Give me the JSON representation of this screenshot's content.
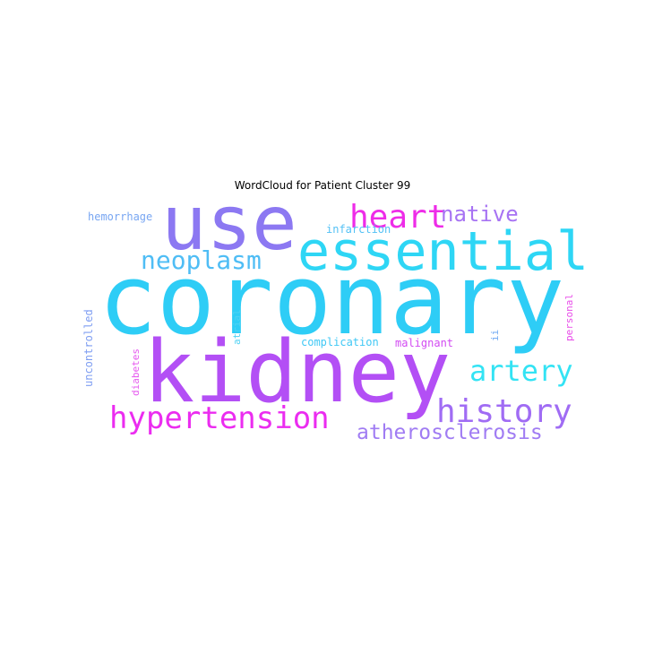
{
  "chart_data": {
    "type": "wordcloud",
    "title": "WordCloud for Patient Cluster 99",
    "words": [
      {
        "text": "coronary",
        "weight": 1.0,
        "color": "#2ecdf6",
        "rotate": false
      },
      {
        "text": "kidney",
        "weight": 0.88,
        "color": "#b34ff5",
        "rotate": false
      },
      {
        "text": "use",
        "weight": 0.78,
        "color": "#8c78f2",
        "rotate": false
      },
      {
        "text": "essential",
        "weight": 0.55,
        "color": "#2ed6f5",
        "rotate": false
      },
      {
        "text": "hypertension",
        "weight": 0.32,
        "color": "#eb2cf0",
        "rotate": false
      },
      {
        "text": "history",
        "weight": 0.34,
        "color": "#a06cf4",
        "rotate": false
      },
      {
        "text": "heart",
        "weight": 0.33,
        "color": "#ee2ce8",
        "rotate": false
      },
      {
        "text": "artery",
        "weight": 0.3,
        "color": "#33e3f4",
        "rotate": false
      },
      {
        "text": "neoplasm",
        "weight": 0.26,
        "color": "#4fbdf5",
        "rotate": false
      },
      {
        "text": "native",
        "weight": 0.22,
        "color": "#a773f3",
        "rotate": false
      },
      {
        "text": "atherosclerosis",
        "weight": 0.22,
        "color": "#a07cf3",
        "rotate": false
      },
      {
        "text": "hemorrhage",
        "weight": 0.1,
        "color": "#78a6f2",
        "rotate": false
      },
      {
        "text": "infarction",
        "weight": 0.1,
        "color": "#53c1f5",
        "rotate": false
      },
      {
        "text": "complication",
        "weight": 0.1,
        "color": "#40c8f5",
        "rotate": false
      },
      {
        "text": "malignant",
        "weight": 0.1,
        "color": "#d24af2",
        "rotate": false
      },
      {
        "text": "uncontrolled",
        "weight": 0.1,
        "color": "#7f9ef2",
        "rotate": true
      },
      {
        "text": "diabetes",
        "weight": 0.09,
        "color": "#e659ef",
        "rotate": true
      },
      {
        "text": "atrial",
        "weight": 0.09,
        "color": "#4fd2f4",
        "rotate": true
      },
      {
        "text": "ii",
        "weight": 0.09,
        "color": "#6ba7f3",
        "rotate": true
      },
      {
        "text": "personal",
        "weight": 0.09,
        "color": "#e84ce9",
        "rotate": true
      }
    ]
  }
}
